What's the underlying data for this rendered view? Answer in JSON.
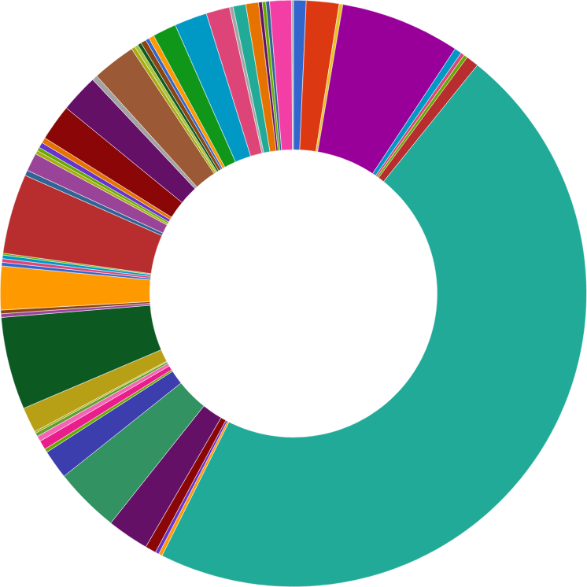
{
  "chart_data": {
    "type": "donut",
    "categories": [
      null,
      null,
      null,
      null,
      null,
      null,
      null,
      null,
      null,
      null,
      null,
      null,
      null,
      null,
      null,
      null,
      null,
      null,
      null,
      null,
      null,
      null,
      null,
      null,
      null,
      null,
      null,
      null,
      null,
      null,
      null,
      null,
      null,
      null,
      null,
      null,
      null,
      null,
      null,
      null,
      null,
      null,
      null,
      null,
      null,
      null,
      null,
      null,
      null,
      null,
      null,
      null,
      null,
      null,
      null,
      null,
      null
    ],
    "values": [
      0.7,
      1.8,
      0.2,
      6.6,
      0.4,
      0.2,
      0.2,
      0.7,
      46.6,
      0.2,
      0.2,
      0.6,
      2.3,
      3.6,
      1.6,
      0.2,
      0.5,
      0.3,
      0.2,
      0.1,
      1.4,
      5.1,
      0.2,
      0.2,
      2.4,
      0.2,
      0.2,
      0.2,
      0.1,
      4.4,
      0.3,
      1.0,
      0.2,
      0.2,
      0.3,
      0.3,
      2.0,
      2.1,
      0.3,
      2.4,
      0.2,
      0.2,
      0.2,
      0.3,
      0.2,
      0.3,
      1.3,
      1.8,
      1.3,
      0.2,
      0.7,
      0.7,
      0.2,
      0.2,
      0.2,
      1.2,
      0.1
    ],
    "colors": [
      "#3366cc",
      "#dc3912",
      "#e8c020",
      "#990099",
      "#0099c6",
      "#dd4477",
      "#66aa00",
      "#b82e2e",
      "#22aa99",
      "#ff9900",
      "#6633cc",
      "#8b0707",
      "#651067",
      "#329262",
      "#3b3eac",
      "#66aa00",
      "#e91e8c",
      "#f564b4",
      "#5fa030",
      "#aaaa11",
      "#b8a016",
      "#0c5922",
      "#994499",
      "#8b4513",
      "#ff9900",
      "#3366cc",
      "#dd4477",
      "#0099c6",
      "#66aa00",
      "#b82e2e",
      "#316395",
      "#994499",
      "#aaaa11",
      "#66aa00",
      "#6633cc",
      "#e67300",
      "#8b0707",
      "#651067",
      "#a3a3a3",
      "#9c5935",
      "#aaaa11",
      "#a8c23a",
      "#0c5922",
      "#8b4513",
      "#3366cc",
      "#ff9900",
      "#109618",
      "#0099c6",
      "#dd4477",
      "#a3a3a3",
      "#22aa99",
      "#e67300",
      "#651067",
      "#66aa00",
      "#316395",
      "#f33ea5",
      "#aaaaaa"
    ]
  }
}
